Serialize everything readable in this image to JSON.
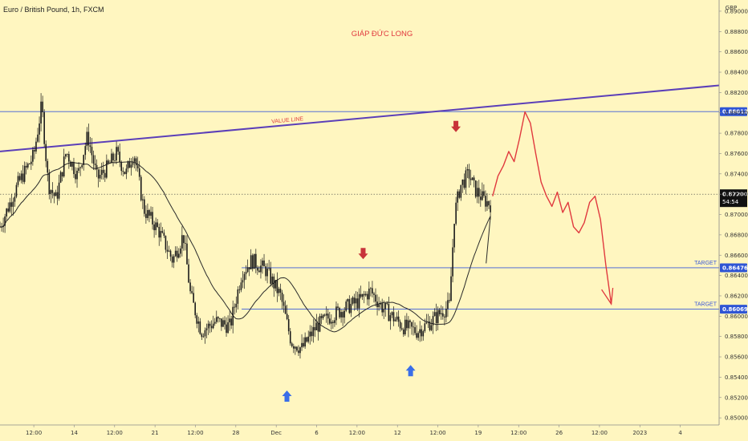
{
  "chart_data": {
    "type": "candlestick",
    "header": "Euro / British Pound, 1h, FXCM",
    "title": "GIÁP ĐỨC LONG",
    "currency": "GBP",
    "ylim": [
      0.8493,
      0.8911
    ],
    "y_ticks": [
      "0.89000",
      "0.88800",
      "0.88600",
      "0.88400",
      "0.88200",
      "0.88000",
      "0.87800",
      "0.87600",
      "0.87400",
      "0.87200",
      "0.87000",
      "0.86800",
      "0.86600",
      "0.86400",
      "0.86200",
      "0.86000",
      "0.85800",
      "0.85600",
      "0.85400",
      "0.85200",
      "0.85000"
    ],
    "x_ticks": [
      "12:00",
      "14",
      "12:00",
      "21",
      "12:00",
      "28",
      "Dec",
      "6",
      "12:00",
      "12",
      "12:00",
      "19",
      "12:00",
      "26",
      "12:00",
      "2023",
      "4"
    ],
    "current_price": "0.87200",
    "countdown": "54:54",
    "levels": [
      {
        "price": 0.88012,
        "label": "0.88012",
        "note": "",
        "color": "#3a5ad8"
      },
      {
        "price": 0.86476,
        "label": "0.86476",
        "note": "TARGET",
        "color": "#3a5ad8"
      },
      {
        "price": 0.86069,
        "label": "0.86069",
        "note": "TARGET",
        "color": "#3a5ad8"
      }
    ],
    "trendline": {
      "label": "VALUE LINE",
      "from": [
        0,
        0.8762
      ],
      "to": [
        1,
        0.8827
      ],
      "color": "#5b3fb8"
    },
    "projection_path": [
      0.8718,
      0.8738,
      0.8748,
      0.8762,
      0.8752,
      0.8775,
      0.8801,
      0.879,
      0.876,
      0.8732,
      0.8718,
      0.8708,
      0.8722,
      0.8702,
      0.8712,
      0.8688,
      0.8682,
      0.8692,
      0.8712,
      0.8718,
      0.8695,
      0.865,
      0.8612
    ],
    "annotations": [
      {
        "type": "arrow-down",
        "color": "#c8343a",
        "price": 0.866,
        "at": 0.505
      },
      {
        "type": "arrow-down",
        "color": "#c8343a",
        "price": 0.8785,
        "at": 0.634
      },
      {
        "type": "arrow-up",
        "color": "#3a6ee8",
        "price": 0.8523,
        "at": 0.399
      },
      {
        "type": "arrow-up",
        "color": "#3a6ee8",
        "price": 0.8548,
        "at": 0.571
      }
    ]
  },
  "colors": {
    "background": "#fff6c0",
    "candle": "#1a1a1a",
    "ma": "#2b2b2b",
    "level": "#3a5ad8",
    "trendline": "#5b3fb8",
    "projection": "#e0393e",
    "label_bg": "#2f55d4",
    "price_bg": "#111111"
  }
}
